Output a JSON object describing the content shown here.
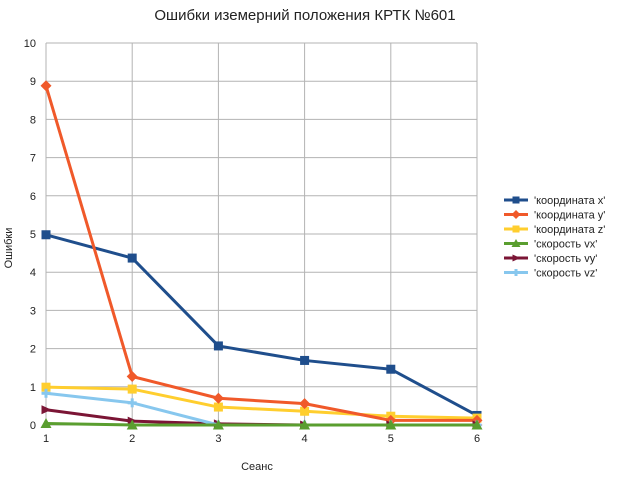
{
  "chart_data": {
    "type": "line",
    "title": "Ошибки иземерний положения КРТК №601",
    "xlabel": "Сеанс",
    "ylabel": "Ошибки",
    "x": [
      1,
      2,
      3,
      4,
      5,
      6
    ],
    "ylim": [
      0,
      10
    ],
    "yticks": [
      0,
      1,
      2,
      3,
      4,
      5,
      6,
      7,
      8,
      9,
      10
    ],
    "grid": true,
    "legend_position": "right",
    "series": [
      {
        "name": "'координата x'",
        "color": "#1f4e8c",
        "marker": "square",
        "values": [
          4.98,
          4.37,
          2.07,
          1.69,
          1.46,
          0.25
        ]
      },
      {
        "name": "'координата y'",
        "color": "#f0592a",
        "marker": "diamond",
        "values": [
          8.88,
          1.27,
          0.7,
          0.56,
          0.12,
          0.12
        ]
      },
      {
        "name": "'координата z'",
        "color": "#ffce2e",
        "marker": "square",
        "values": [
          0.99,
          0.94,
          0.47,
          0.36,
          0.23,
          0.18
        ]
      },
      {
        "name": "'скорость vx'",
        "color": "#5a9e2f",
        "marker": "triangle",
        "values": [
          0.04,
          0.0,
          0.0,
          0.0,
          0.0,
          0.0
        ]
      },
      {
        "name": "'скорость vy'",
        "color": "#7b1535",
        "marker": "arrow",
        "values": [
          0.4,
          0.1,
          0.03,
          0.0,
          0.0,
          0.0
        ]
      },
      {
        "name": "'скорость vz'",
        "color": "#87c7ee",
        "marker": "cross",
        "values": [
          0.83,
          0.58,
          0.0,
          0.0,
          0.0,
          0.0
        ]
      }
    ]
  }
}
